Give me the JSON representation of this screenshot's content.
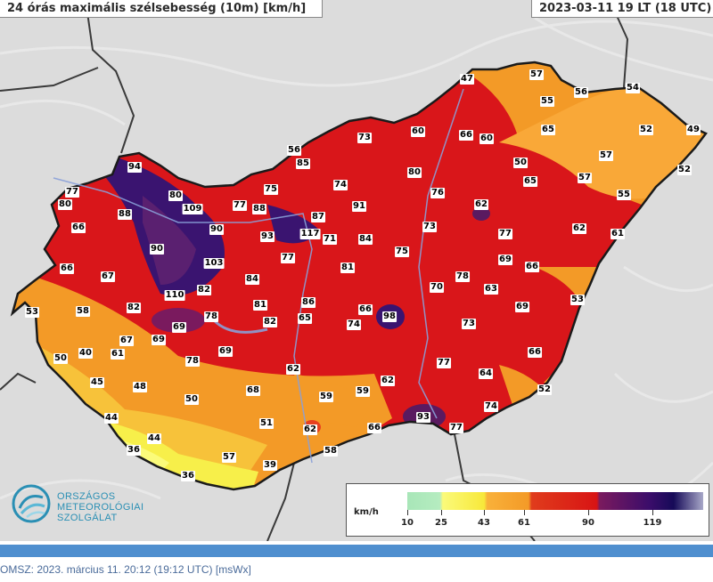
{
  "header": {
    "title": "24 órás maximális szélsebesség (10m) [km/h]",
    "valid_time": "2023-03-11 19 LT  (18 UTC)"
  },
  "colors": {
    "background": "#dcdcdc",
    "calm": "#a8e6b8",
    "light": "#f7e83a",
    "moderate": "#f39a27",
    "strong": "#e03c1c",
    "very_strong": "#d81414",
    "storm": "#3a0d6a",
    "footer_bar": "#4f8fcf",
    "logo": "#2a8fb4"
  },
  "stations": [
    {
      "v": "47"
    },
    {
      "v": "57"
    },
    {
      "v": "56"
    },
    {
      "v": "54"
    },
    {
      "v": "55"
    },
    {
      "v": "65"
    },
    {
      "v": "52"
    },
    {
      "v": "49"
    },
    {
      "v": "52"
    },
    {
      "v": "57"
    },
    {
      "v": "50"
    },
    {
      "v": "65"
    },
    {
      "v": "57"
    },
    {
      "v": "55"
    },
    {
      "v": "61"
    },
    {
      "v": "62"
    },
    {
      "v": "77"
    },
    {
      "v": "62"
    },
    {
      "v": "73"
    },
    {
      "v": "60"
    },
    {
      "v": "66"
    },
    {
      "v": "60"
    },
    {
      "v": "56"
    },
    {
      "v": "85"
    },
    {
      "v": "80"
    },
    {
      "v": "74"
    },
    {
      "v": "76"
    },
    {
      "v": "75"
    },
    {
      "v": "91"
    },
    {
      "v": "87"
    },
    {
      "v": "117"
    },
    {
      "v": "71"
    },
    {
      "v": "84"
    },
    {
      "v": "73"
    },
    {
      "v": "94"
    },
    {
      "v": "77"
    },
    {
      "v": "80"
    },
    {
      "v": "80"
    },
    {
      "v": "109"
    },
    {
      "v": "77"
    },
    {
      "v": "88"
    },
    {
      "v": "88"
    },
    {
      "v": "66"
    },
    {
      "v": "90"
    },
    {
      "v": "93"
    },
    {
      "v": "90"
    },
    {
      "v": "77"
    },
    {
      "v": "75"
    },
    {
      "v": "81"
    },
    {
      "v": "66"
    },
    {
      "v": "67"
    },
    {
      "v": "103"
    },
    {
      "v": "110"
    },
    {
      "v": "82"
    },
    {
      "v": "84"
    },
    {
      "v": "69"
    },
    {
      "v": "66"
    },
    {
      "v": "78"
    },
    {
      "v": "70"
    },
    {
      "v": "63"
    },
    {
      "v": "53"
    },
    {
      "v": "58"
    },
    {
      "v": "82"
    },
    {
      "v": "78"
    },
    {
      "v": "81"
    },
    {
      "v": "86"
    },
    {
      "v": "82"
    },
    {
      "v": "65"
    },
    {
      "v": "66"
    },
    {
      "v": "74"
    },
    {
      "v": "98"
    },
    {
      "v": "73"
    },
    {
      "v": "69"
    },
    {
      "v": "53"
    },
    {
      "v": "67"
    },
    {
      "v": "69"
    },
    {
      "v": "69"
    },
    {
      "v": "50"
    },
    {
      "v": "40"
    },
    {
      "v": "61"
    },
    {
      "v": "78"
    },
    {
      "v": "69"
    },
    {
      "v": "77"
    },
    {
      "v": "66"
    },
    {
      "v": "64"
    },
    {
      "v": "45"
    },
    {
      "v": "48"
    },
    {
      "v": "62"
    },
    {
      "v": "62"
    },
    {
      "v": "50"
    },
    {
      "v": "68"
    },
    {
      "v": "59"
    },
    {
      "v": "59"
    },
    {
      "v": "52"
    },
    {
      "v": "44"
    },
    {
      "v": "51"
    },
    {
      "v": "74"
    },
    {
      "v": "93"
    },
    {
      "v": "62"
    },
    {
      "v": "66"
    },
    {
      "v": "77"
    },
    {
      "v": "44"
    },
    {
      "v": "36"
    },
    {
      "v": "57"
    },
    {
      "v": "58"
    },
    {
      "v": "39"
    },
    {
      "v": "36"
    }
  ],
  "logo": {
    "line1": "ORSZÁGOS",
    "line2": "METEOROLÓGIAI",
    "line3": "SZOLGÁLAT"
  },
  "legend": {
    "unit": "km/h",
    "ticks": [
      "10",
      "25",
      "43",
      "61",
      "90",
      "119"
    ]
  },
  "footer": {
    "text": "OMSZ: 2023. március 11. 20:12 (19:12  UTC)  [msWx]"
  }
}
